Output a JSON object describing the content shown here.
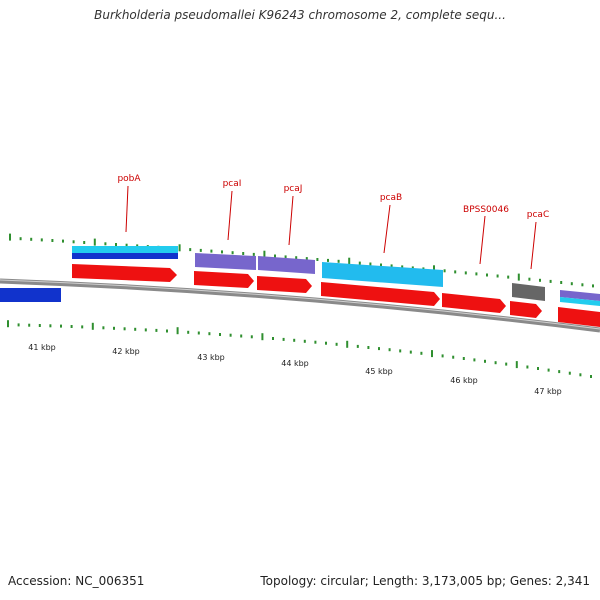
{
  "title": "Burkholderia pseudomallei K96243 chromosome 2, complete sequ...",
  "footer": {
    "accession": "Accession: NC_006351",
    "summary": "Topology: circular; Length: 3,173,005 bp; Genes: 2,341"
  },
  "colors": {
    "backbone": "#8a8a8a",
    "tick": "#2f8f2f",
    "label": "#cc0000",
    "cds_red": "#ee1111",
    "cyan": "#22ccee",
    "blue": "#1133cc",
    "purple": "#7766cc",
    "sky": "#22bbee",
    "gray": "#666666"
  },
  "map": {
    "scale_labels": [
      "41 kbp",
      "42 kbp",
      "43 kbp",
      "44 kbp",
      "45 kbp",
      "46 kbp",
      "47 kbp"
    ],
    "gene_labels": [
      "pobA",
      "pcaI",
      "pcaJ",
      "pcaB",
      "BPSS0046",
      "pcaC"
    ]
  }
}
